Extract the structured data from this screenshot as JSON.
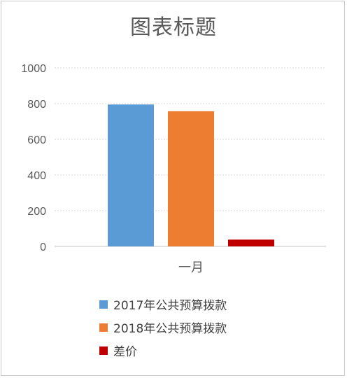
{
  "chart_data": {
    "type": "bar",
    "title": "图表标题",
    "categories": [
      "一月"
    ],
    "series": [
      {
        "name": "2017年公共预算拨款",
        "values": [
          795
        ],
        "color": "#5b9bd5"
      },
      {
        "name": "2018年公共预算拨款",
        "values": [
          757
        ],
        "color": "#ed7d31"
      },
      {
        "name": "差价",
        "values": [
          38
        ],
        "color": "#c00000"
      }
    ],
    "ylim": [
      0,
      1000
    ],
    "yticks": [
      "1000",
      "800",
      "600",
      "400",
      "200",
      "0"
    ],
    "grid": true,
    "legend_position": "bottom"
  }
}
